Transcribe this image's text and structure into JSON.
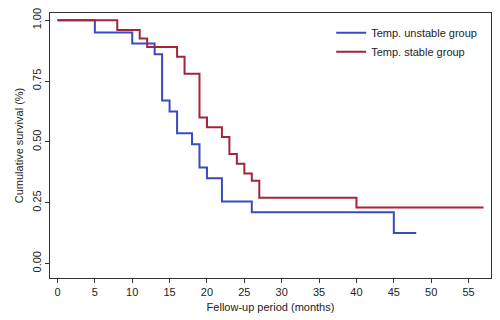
{
  "chart_data": {
    "type": "line",
    "x_label": "Fellow-up period (months)",
    "y_label": "Cumulative survival (%)",
    "xlim": [
      -1,
      58
    ],
    "xticks": [
      0,
      5,
      10,
      15,
      20,
      25,
      30,
      35,
      40,
      45,
      50,
      55
    ],
    "ylim": [
      -0.06,
      1.03
    ],
    "yticks": [
      {
        "value": 0,
        "label": "0.00"
      },
      {
        "value": 0.25,
        "label": "0.25"
      },
      {
        "value": 0.5,
        "label": "0.50"
      },
      {
        "value": 0.75,
        "label": "0.75"
      },
      {
        "value": 1,
        "label": "1.00"
      }
    ],
    "grid": false,
    "legend": "top right",
    "line_style": "step",
    "series": [
      {
        "name": "Temp. unstable group",
        "color": "#3a4bbf",
        "x": [
          0,
          5,
          10,
          13,
          14,
          15,
          16,
          18,
          19,
          20,
          22,
          26,
          45,
          48
        ],
        "values": [
          1.0,
          0.95,
          0.905,
          0.86,
          0.67,
          0.625,
          0.535,
          0.49,
          0.395,
          0.35,
          0.255,
          0.21,
          0.125,
          0.125
        ]
      },
      {
        "name": "Temp. stable group",
        "color": "#a3243b",
        "x": [
          0,
          8,
          11,
          12,
          16,
          17,
          19,
          20,
          22,
          23,
          24,
          25,
          26,
          27,
          40,
          57
        ],
        "values": [
          1.0,
          0.96,
          0.925,
          0.89,
          0.85,
          0.78,
          0.6,
          0.56,
          0.52,
          0.45,
          0.41,
          0.37,
          0.34,
          0.27,
          0.23,
          0.23
        ]
      }
    ]
  }
}
